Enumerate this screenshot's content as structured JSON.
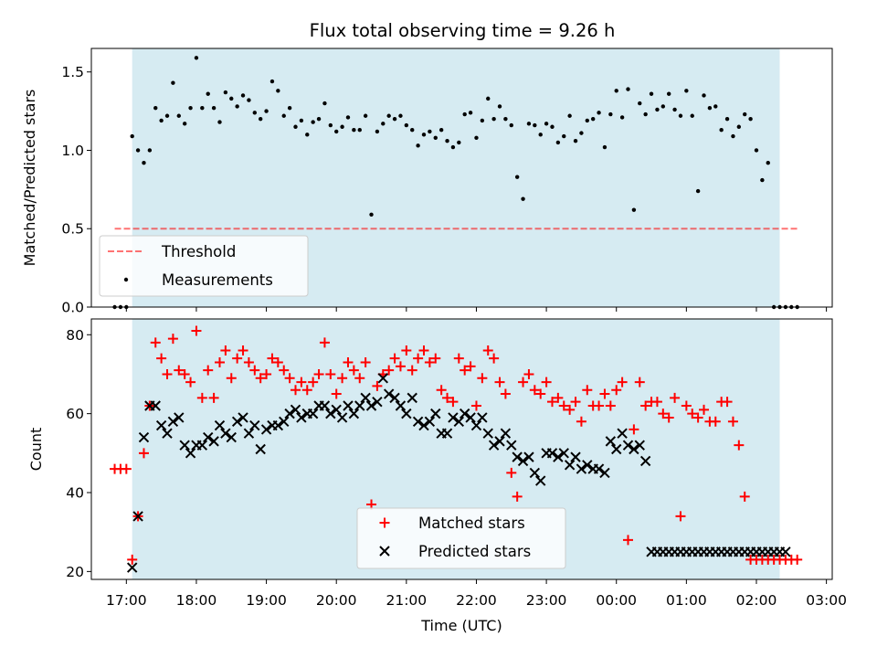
{
  "colors": {
    "shade": "#add8e6",
    "threshold": "#ff0000",
    "measurement": "#000000",
    "matched": "#ff0000",
    "predicted": "#000000"
  },
  "chart_data": [
    {
      "type": "scatter",
      "title": "Flux total observing time = 9.26 h",
      "ylabel": "Matched/Predicted stars",
      "ylim": [
        0,
        1.65
      ],
      "yticks": [
        "0.0",
        "0.5",
        "1.0",
        "1.5"
      ],
      "ytick_values": [
        0,
        0.5,
        1.0,
        1.5
      ],
      "xlim": [
        "16:30",
        "03:05"
      ],
      "shaded_region": [
        "17:05",
        "02:20"
      ],
      "legend": {
        "position": "lower left",
        "entries": [
          "Threshold",
          "Measurements"
        ]
      },
      "threshold": {
        "name": "Threshold",
        "y": 0.5,
        "x_range": [
          "16:50",
          "02:35"
        ]
      },
      "series": [
        {
          "name": "Measurements",
          "x": [
            "16:50",
            "16:55",
            "17:00",
            "17:05",
            "17:10",
            "17:15",
            "17:20",
            "17:25",
            "17:30",
            "17:35",
            "17:40",
            "17:45",
            "17:50",
            "17:55",
            "18:00",
            "18:05",
            "18:10",
            "18:15",
            "18:20",
            "18:25",
            "18:30",
            "18:35",
            "18:40",
            "18:45",
            "18:50",
            "18:55",
            "19:00",
            "19:05",
            "19:10",
            "19:15",
            "19:20",
            "19:25",
            "19:30",
            "19:35",
            "19:40",
            "19:45",
            "19:50",
            "19:55",
            "20:00",
            "20:05",
            "20:10",
            "20:15",
            "20:20",
            "20:25",
            "20:30",
            "20:35",
            "20:40",
            "20:45",
            "20:50",
            "20:55",
            "21:00",
            "21:05",
            "21:10",
            "21:15",
            "21:20",
            "21:25",
            "21:30",
            "21:35",
            "21:40",
            "21:45",
            "21:50",
            "21:55",
            "22:00",
            "22:05",
            "22:10",
            "22:15",
            "22:20",
            "22:25",
            "22:30",
            "22:35",
            "22:40",
            "22:45",
            "22:50",
            "22:55",
            "23:00",
            "23:05",
            "23:10",
            "23:15",
            "23:20",
            "23:25",
            "23:30",
            "23:35",
            "23:40",
            "23:45",
            "23:50",
            "23:55",
            "00:00",
            "00:05",
            "00:10",
            "00:15",
            "00:20",
            "00:25",
            "00:30",
            "00:35",
            "00:40",
            "00:45",
            "00:50",
            "00:55",
            "01:00",
            "01:05",
            "01:10",
            "01:15",
            "01:20",
            "01:25",
            "01:30",
            "01:35",
            "01:40",
            "01:45",
            "01:50",
            "01:55",
            "02:00",
            "02:05",
            "02:10",
            "02:15",
            "02:20",
            "02:25",
            "02:30",
            "02:35"
          ],
          "y": [
            0.0,
            0.0,
            0.0,
            1.09,
            1.0,
            0.92,
            1.0,
            1.27,
            1.19,
            1.22,
            1.43,
            1.22,
            1.17,
            1.27,
            1.59,
            1.27,
            1.36,
            1.27,
            1.18,
            1.37,
            1.33,
            1.28,
            1.35,
            1.32,
            1.24,
            1.2,
            1.25,
            1.44,
            1.38,
            1.22,
            1.27,
            1.15,
            1.19,
            1.1,
            1.18,
            1.2,
            1.3,
            1.16,
            1.12,
            1.15,
            1.21,
            1.13,
            1.13,
            1.22,
            0.59,
            1.12,
            1.17,
            1.22,
            1.2,
            1.22,
            1.16,
            1.13,
            1.03,
            1.1,
            1.12,
            1.08,
            1.13,
            1.06,
            1.02,
            1.05,
            1.23,
            1.24,
            1.08,
            1.19,
            1.33,
            1.2,
            1.28,
            1.2,
            1.16,
            0.83,
            0.69,
            1.17,
            1.16,
            1.1,
            1.17,
            1.15,
            1.05,
            1.09,
            1.22,
            1.06,
            1.11,
            1.19,
            1.2,
            1.24,
            1.02,
            1.23,
            1.38,
            1.21,
            1.39,
            0.62,
            1.3,
            1.23,
            1.36,
            1.26,
            1.28,
            1.36,
            1.26,
            1.22,
            1.38,
            1.22,
            0.74,
            1.35,
            1.27,
            1.28,
            1.13,
            1.2,
            1.09,
            1.15,
            1.23,
            1.2,
            1.0,
            0.81,
            0.92,
            0.0,
            0.0,
            0.0,
            0.0,
            0.0
          ]
        }
      ]
    },
    {
      "type": "scatter",
      "xlabel": "Time (UTC)",
      "ylabel": "Count",
      "ylim": [
        18,
        84
      ],
      "yticks": [
        "20",
        "40",
        "60",
        "80"
      ],
      "ytick_values": [
        20,
        40,
        60,
        80
      ],
      "xticks": [
        "17:00",
        "18:00",
        "19:00",
        "20:00",
        "21:00",
        "22:00",
        "23:00",
        "00:00",
        "01:00",
        "02:00",
        "03:00"
      ],
      "xlim": [
        "16:30",
        "03:05"
      ],
      "shaded_region": [
        "17:05",
        "02:20"
      ],
      "legend": {
        "position": "lower center",
        "entries": [
          "Matched stars",
          "Predicted stars"
        ]
      },
      "series": [
        {
          "name": "Matched stars",
          "marker": "+",
          "x": [
            "16:50",
            "16:55",
            "17:00",
            "17:05",
            "17:10",
            "17:15",
            "17:20",
            "17:25",
            "17:30",
            "17:35",
            "17:40",
            "17:45",
            "17:50",
            "17:55",
            "18:00",
            "18:05",
            "18:10",
            "18:15",
            "18:20",
            "18:25",
            "18:30",
            "18:35",
            "18:40",
            "18:45",
            "18:50",
            "18:55",
            "19:00",
            "19:05",
            "19:10",
            "19:15",
            "19:20",
            "19:25",
            "19:30",
            "19:35",
            "19:40",
            "19:45",
            "19:50",
            "19:55",
            "20:00",
            "20:05",
            "20:10",
            "20:15",
            "20:20",
            "20:25",
            "20:30",
            "20:35",
            "20:40",
            "20:45",
            "20:50",
            "20:55",
            "21:00",
            "21:05",
            "21:10",
            "21:15",
            "21:20",
            "21:25",
            "21:30",
            "21:35",
            "21:40",
            "21:45",
            "21:50",
            "21:55",
            "22:00",
            "22:05",
            "22:10",
            "22:15",
            "22:20",
            "22:25",
            "22:30",
            "22:35",
            "22:40",
            "22:45",
            "22:50",
            "22:55",
            "23:00",
            "23:05",
            "23:10",
            "23:15",
            "23:20",
            "23:25",
            "23:30",
            "23:35",
            "23:40",
            "23:45",
            "23:50",
            "23:55",
            "00:00",
            "00:05",
            "00:10",
            "00:15",
            "00:20",
            "00:25",
            "00:30",
            "00:35",
            "00:40",
            "00:45",
            "00:50",
            "00:55",
            "01:00",
            "01:05",
            "01:10",
            "01:15",
            "01:20",
            "01:25",
            "01:30",
            "01:35",
            "01:40",
            "01:45",
            "01:50",
            "01:55",
            "02:00",
            "02:05",
            "02:10",
            "02:15",
            "02:20",
            "02:25",
            "02:30",
            "02:35"
          ],
          "y": [
            46,
            46,
            46,
            23,
            34,
            50,
            62,
            78,
            74,
            70,
            79,
            71,
            70,
            68,
            81,
            64,
            71,
            64,
            73,
            76,
            69,
            74,
            76,
            73,
            71,
            69,
            70,
            74,
            73,
            71,
            69,
            66,
            68,
            66,
            68,
            70,
            78,
            70,
            65,
            69,
            73,
            71,
            69,
            73,
            37,
            67,
            70,
            71,
            74,
            72,
            76,
            71,
            74,
            76,
            73,
            74,
            66,
            64,
            63,
            74,
            71,
            72,
            62,
            69,
            76,
            74,
            68,
            65,
            45,
            39,
            68,
            70,
            66,
            65,
            68,
            63,
            64,
            62,
            61,
            63,
            58,
            66,
            62,
            62,
            65,
            62,
            66,
            68,
            28,
            56,
            68,
            62,
            63,
            63,
            60,
            59,
            64,
            34,
            62,
            60,
            59,
            61,
            58,
            58,
            63,
            63,
            58,
            52,
            39,
            23,
            23,
            23,
            23,
            23,
            23,
            23,
            23,
            23
          ]
        },
        {
          "name": "Predicted stars",
          "marker": "x",
          "x": [
            "17:05",
            "17:10",
            "17:15",
            "17:20",
            "17:25",
            "17:30",
            "17:35",
            "17:40",
            "17:45",
            "17:50",
            "17:55",
            "18:00",
            "18:05",
            "18:10",
            "18:15",
            "18:20",
            "18:25",
            "18:30",
            "18:35",
            "18:40",
            "18:45",
            "18:50",
            "18:55",
            "19:00",
            "19:05",
            "19:10",
            "19:15",
            "19:20",
            "19:25",
            "19:30",
            "19:35",
            "19:40",
            "19:45",
            "19:50",
            "19:55",
            "20:00",
            "20:05",
            "20:10",
            "20:15",
            "20:20",
            "20:25",
            "20:30",
            "20:35",
            "20:40",
            "20:45",
            "20:50",
            "20:55",
            "21:00",
            "21:05",
            "21:10",
            "21:15",
            "21:20",
            "21:25",
            "21:30",
            "21:35",
            "21:40",
            "21:45",
            "21:50",
            "21:55",
            "22:00",
            "22:05",
            "22:10",
            "22:15",
            "22:20",
            "22:25",
            "22:30",
            "22:35",
            "22:40",
            "22:45",
            "22:50",
            "22:55",
            "23:00",
            "23:05",
            "23:10",
            "23:15",
            "23:20",
            "23:25",
            "23:30",
            "23:35",
            "23:40",
            "23:45",
            "23:50",
            "23:55",
            "00:00",
            "00:05",
            "00:10",
            "00:15",
            "00:20",
            "00:25",
            "00:30",
            "00:35",
            "00:40",
            "00:45",
            "00:50",
            "00:55",
            "01:00",
            "01:05",
            "01:10",
            "01:15",
            "01:20",
            "01:25",
            "01:30",
            "01:35",
            "01:40",
            "01:45",
            "01:50",
            "01:55",
            "02:00",
            "02:05",
            "02:10",
            "02:15",
            "02:20",
            "02:25"
          ],
          "y": [
            21,
            34,
            54,
            62,
            62,
            57,
            55,
            58,
            59,
            52,
            50,
            52,
            52,
            54,
            53,
            57,
            55,
            54,
            58,
            59,
            55,
            57,
            51,
            56,
            57,
            57,
            58,
            60,
            61,
            59,
            60,
            60,
            62,
            62,
            60,
            61,
            59,
            62,
            60,
            62,
            64,
            62,
            63,
            69,
            65,
            64,
            62,
            60,
            64,
            58,
            57,
            58,
            60,
            55,
            55,
            59,
            58,
            60,
            59,
            57,
            59,
            55,
            52,
            53,
            55,
            52,
            49,
            48,
            49,
            45,
            43,
            50,
            50,
            49,
            50,
            47,
            49,
            46,
            47,
            46,
            46,
            45,
            53,
            51,
            55,
            52,
            51,
            52,
            48,
            25,
            25,
            25,
            25,
            25,
            25,
            25,
            25,
            25,
            25,
            25,
            25,
            25,
            25,
            25,
            25,
            25,
            25,
            25,
            25,
            25,
            25,
            25,
            25
          ]
        }
      ]
    }
  ]
}
